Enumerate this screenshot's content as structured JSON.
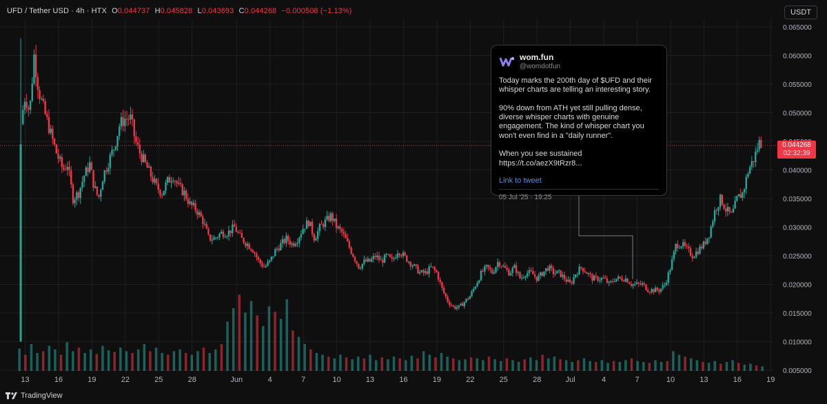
{
  "legend": {
    "symbol": "UFD / Tether USD · 4h · HTX",
    "o_label": "O",
    "o_value": "0.044737",
    "h_label": "H",
    "h_value": "0.045828",
    "l_label": "L",
    "l_value": "0.043693",
    "c_label": "C",
    "c_value": "0.044268",
    "change": "−0.000508 (−1.13%)"
  },
  "currency_button": "USDT",
  "last_price": {
    "value": "0.044268",
    "countdown": "02:32:39"
  },
  "tweet": {
    "name": "wom.fun",
    "handle": "@womdotfun",
    "text": "Today marks the 200th day of $UFD and their whisper charts are telling an interesting story.\n\n90% down from ATH yet still pulling dense, diverse whisper charts with genuine engagement. The kind of whisper chart you won't even find in a  \"daily runner\".\n\nWhen you see sustained\nhttps://t.co/aezX9tRzr8...",
    "link_label": "Link to tweet",
    "date": "05 Jul '25 · 19:25"
  },
  "brand": "TradingView",
  "colors": {
    "up": "#26a69a",
    "down": "#f23645",
    "background": "#0f0f0f",
    "grid": "#1e1f22",
    "axis_text": "#b2b5be"
  },
  "chart_data": {
    "type": "candlestick",
    "title": "UFD / Tether USD · 4h · HTX",
    "ylim": [
      0.005,
      0.065
    ],
    "y_ticks": [
      "0.065000",
      "0.060000",
      "0.055000",
      "0.050000",
      "0.045000",
      "0.040000",
      "0.035000",
      "0.030000",
      "0.025000",
      "0.020000",
      "0.015000",
      "0.010000",
      "0.005000"
    ],
    "x_ticks": [
      "13",
      "16",
      "19",
      "22",
      "25",
      "28",
      "Jun",
      "4",
      "7",
      "10",
      "13",
      "16",
      "19",
      "22",
      "25",
      "28",
      "Jul",
      "4",
      "7",
      "10",
      "13",
      "16",
      "19"
    ],
    "x_tick_days": [
      13,
      16,
      19,
      22,
      25,
      28,
      32,
      35,
      38,
      41,
      44,
      47,
      50,
      53,
      56,
      59,
      62,
      65,
      68,
      71,
      74,
      77,
      80
    ],
    "grid": true,
    "series": [
      {
        "type": "close_path",
        "points": [
          [
            12.6,
            0.048
          ],
          [
            13.0,
            0.053
          ],
          [
            13.4,
            0.05
          ],
          [
            13.8,
            0.06
          ],
          [
            14.2,
            0.054
          ],
          [
            14.6,
            0.051
          ],
          [
            15.2,
            0.047
          ],
          [
            15.8,
            0.043
          ],
          [
            16.4,
            0.04
          ],
          [
            16.8,
            0.041
          ],
          [
            17.3,
            0.035
          ],
          [
            17.8,
            0.036
          ],
          [
            18.3,
            0.039
          ],
          [
            18.8,
            0.041
          ],
          [
            19.2,
            0.037
          ],
          [
            19.6,
            0.035
          ],
          [
            20.0,
            0.039
          ],
          [
            20.4,
            0.041
          ],
          [
            21.0,
            0.044
          ],
          [
            21.5,
            0.048
          ],
          [
            22.0,
            0.049
          ],
          [
            22.5,
            0.049
          ],
          [
            22.9,
            0.045
          ],
          [
            23.3,
            0.043
          ],
          [
            23.8,
            0.041
          ],
          [
            24.3,
            0.039
          ],
          [
            24.8,
            0.037
          ],
          [
            25.3,
            0.036
          ],
          [
            25.8,
            0.038
          ],
          [
            26.3,
            0.039
          ],
          [
            26.8,
            0.037
          ],
          [
            27.3,
            0.036
          ],
          [
            27.8,
            0.034
          ],
          [
            28.4,
            0.033
          ],
          [
            29.0,
            0.031
          ],
          [
            29.5,
            0.028
          ],
          [
            30.0,
            0.028
          ],
          [
            30.6,
            0.029
          ],
          [
            31.2,
            0.029
          ],
          [
            31.8,
            0.03
          ],
          [
            32.4,
            0.028
          ],
          [
            33.0,
            0.027
          ],
          [
            33.5,
            0.026
          ],
          [
            34.0,
            0.024
          ],
          [
            34.5,
            0.023
          ],
          [
            35.0,
            0.024
          ],
          [
            35.5,
            0.026
          ],
          [
            36.0,
            0.027
          ],
          [
            36.5,
            0.028
          ],
          [
            37.0,
            0.027
          ],
          [
            37.5,
            0.028
          ],
          [
            38.0,
            0.03
          ],
          [
            38.5,
            0.031
          ],
          [
            39.0,
            0.028
          ],
          [
            39.5,
            0.03
          ],
          [
            40.0,
            0.031
          ],
          [
            40.5,
            0.032
          ],
          [
            41.0,
            0.03
          ],
          [
            41.5,
            0.029
          ],
          [
            42.0,
            0.027
          ],
          [
            42.5,
            0.025
          ],
          [
            43.0,
            0.023
          ],
          [
            43.5,
            0.024
          ],
          [
            44.0,
            0.024
          ],
          [
            44.5,
            0.025
          ],
          [
            45.0,
            0.024
          ],
          [
            45.5,
            0.025
          ],
          [
            46.0,
            0.024
          ],
          [
            46.5,
            0.026
          ],
          [
            47.0,
            0.025
          ],
          [
            47.5,
            0.024
          ],
          [
            48.0,
            0.023
          ],
          [
            48.5,
            0.022
          ],
          [
            49.0,
            0.022
          ],
          [
            49.5,
            0.023
          ],
          [
            50.0,
            0.022
          ],
          [
            50.5,
            0.019
          ],
          [
            51.0,
            0.017
          ],
          [
            51.5,
            0.016
          ],
          [
            52.0,
            0.016
          ],
          [
            52.5,
            0.017
          ],
          [
            53.0,
            0.018
          ],
          [
            53.5,
            0.02
          ],
          [
            54.0,
            0.022
          ],
          [
            54.5,
            0.023
          ],
          [
            55.0,
            0.022
          ],
          [
            55.5,
            0.024
          ],
          [
            56.0,
            0.023
          ],
          [
            56.5,
            0.022
          ],
          [
            57.0,
            0.023
          ],
          [
            57.5,
            0.021
          ],
          [
            58.0,
            0.022
          ],
          [
            58.5,
            0.022
          ],
          [
            59.0,
            0.021
          ],
          [
            59.5,
            0.022
          ],
          [
            60.0,
            0.023
          ],
          [
            60.5,
            0.022
          ],
          [
            61.0,
            0.022
          ],
          [
            61.5,
            0.021
          ],
          [
            62.0,
            0.02
          ],
          [
            62.5,
            0.022
          ],
          [
            63.0,
            0.023
          ],
          [
            63.5,
            0.022
          ],
          [
            64.0,
            0.021
          ],
          [
            64.5,
            0.021
          ],
          [
            65.0,
            0.021
          ],
          [
            65.5,
            0.02
          ],
          [
            66.0,
            0.021
          ],
          [
            66.5,
            0.021
          ],
          [
            67.0,
            0.021
          ],
          [
            67.5,
            0.02
          ],
          [
            68.0,
            0.02
          ],
          [
            68.5,
            0.02
          ],
          [
            69.0,
            0.019
          ],
          [
            69.5,
            0.019
          ],
          [
            70.0,
            0.019
          ],
          [
            70.5,
            0.02
          ],
          [
            71.0,
            0.023
          ],
          [
            71.5,
            0.027
          ],
          [
            72.0,
            0.027
          ],
          [
            72.5,
            0.026
          ],
          [
            73.0,
            0.025
          ],
          [
            73.5,
            0.026
          ],
          [
            74.0,
            0.027
          ],
          [
            74.5,
            0.029
          ],
          [
            75.0,
            0.033
          ],
          [
            75.5,
            0.035
          ],
          [
            76.0,
            0.033
          ],
          [
            76.5,
            0.032
          ],
          [
            77.0,
            0.035
          ],
          [
            77.5,
            0.036
          ],
          [
            78.0,
            0.04
          ],
          [
            78.5,
            0.042
          ],
          [
            79.0,
            0.045
          ],
          [
            79.3,
            0.0443
          ]
        ]
      }
    ],
    "volume_relative": [
      0.25,
      0.18,
      0.3,
      0.2,
      0.22,
      0.28,
      0.24,
      0.18,
      0.32,
      0.22,
      0.26,
      0.2,
      0.24,
      0.19,
      0.28,
      0.23,
      0.21,
      0.26,
      0.22,
      0.2,
      0.24,
      0.3,
      0.22,
      0.26,
      0.2,
      0.18,
      0.22,
      0.24,
      0.2,
      0.18,
      0.22,
      0.26,
      0.2,
      0.24,
      0.3,
      0.55,
      0.7,
      0.85,
      0.65,
      0.78,
      0.62,
      0.5,
      0.72,
      0.66,
      0.58,
      0.8,
      0.45,
      0.38,
      0.3,
      0.24,
      0.2,
      0.18,
      0.16,
      0.14,
      0.18,
      0.15,
      0.13,
      0.16,
      0.14,
      0.18,
      0.12,
      0.15,
      0.13,
      0.16,
      0.14,
      0.12,
      0.17,
      0.14,
      0.22,
      0.18,
      0.15,
      0.2,
      0.16,
      0.14,
      0.12,
      0.13,
      0.15,
      0.14,
      0.12,
      0.16,
      0.13,
      0.11,
      0.14,
      0.12,
      0.1,
      0.13,
      0.15,
      0.12,
      0.18,
      0.14,
      0.16,
      0.13,
      0.12,
      0.1,
      0.12,
      0.14,
      0.11,
      0.1,
      0.12,
      0.09,
      0.11,
      0.1,
      0.12,
      0.14,
      0.11,
      0.1,
      0.09,
      0.12,
      0.1,
      0.11,
      0.22,
      0.18,
      0.16,
      0.14,
      0.12,
      0.1,
      0.09,
      0.11,
      0.08,
      0.1,
      0.12,
      0.09,
      0.07,
      0.08,
      0.06,
      0.05
    ]
  }
}
